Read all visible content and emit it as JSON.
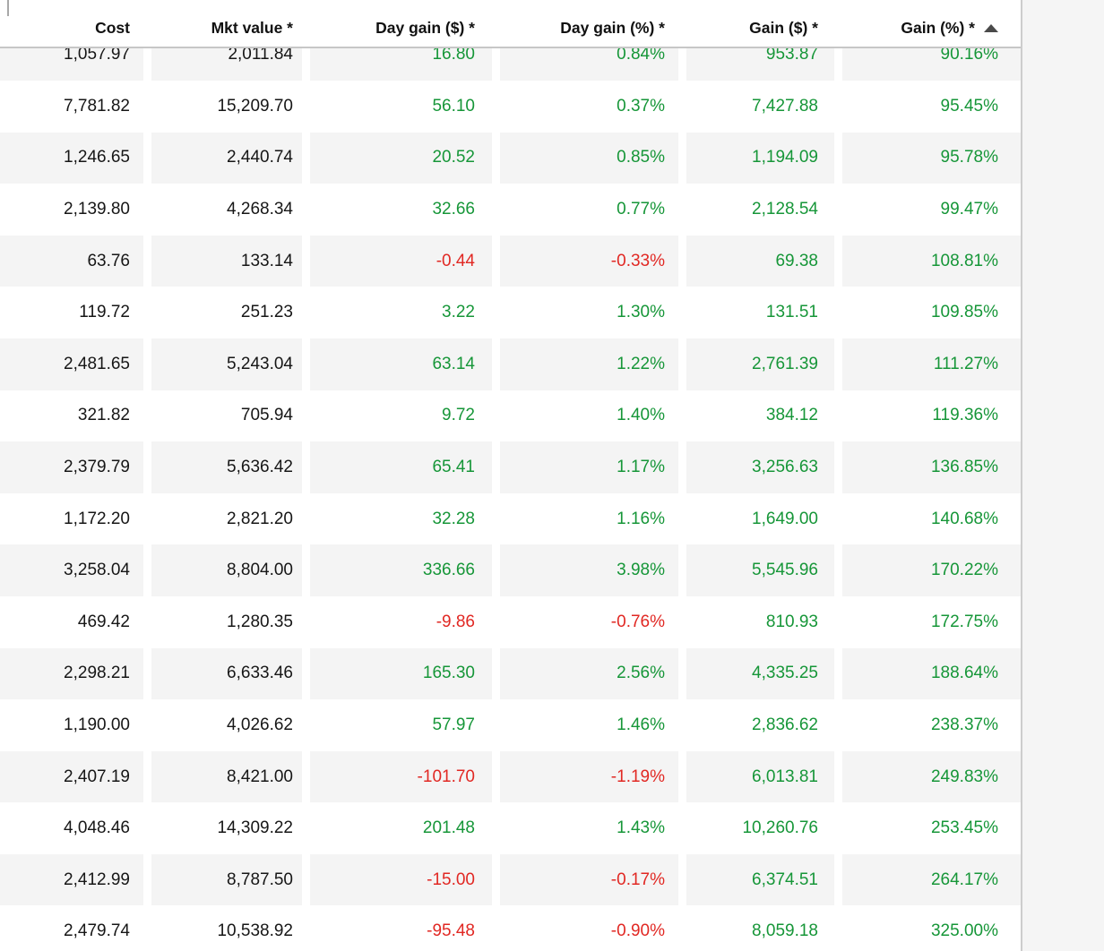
{
  "colors": {
    "positive": "#169638",
    "negative": "#e12823",
    "stripe": "#f4f4f4",
    "header_border": "#c7c7c7"
  },
  "table": {
    "columns": [
      {
        "label": "Cost",
        "key": "cost",
        "colorized": false
      },
      {
        "label": "Mkt value *",
        "key": "mkt_value",
        "colorized": false
      },
      {
        "label": "Day gain ($) *",
        "key": "day_gain_usd",
        "colorized": true
      },
      {
        "label": "Day gain (%) *",
        "key": "day_gain_pct",
        "colorized": true
      },
      {
        "label": "Gain ($) *",
        "key": "gain_usd",
        "colorized": true
      },
      {
        "label": "Gain (%) *",
        "key": "gain_pct",
        "colorized": true
      }
    ],
    "sort": {
      "sorted_by": "Gain (%) *",
      "direction": "ascending"
    },
    "rows": [
      {
        "cost": "1,057.97",
        "mkt_value": "2,011.84",
        "day_gain_usd": "16.80",
        "day_gain_pct": "0.84%",
        "gain_usd": "953.87",
        "gain_pct": "90.16%"
      },
      {
        "cost": "7,781.82",
        "mkt_value": "15,209.70",
        "day_gain_usd": "56.10",
        "day_gain_pct": "0.37%",
        "gain_usd": "7,427.88",
        "gain_pct": "95.45%"
      },
      {
        "cost": "1,246.65",
        "mkt_value": "2,440.74",
        "day_gain_usd": "20.52",
        "day_gain_pct": "0.85%",
        "gain_usd": "1,194.09",
        "gain_pct": "95.78%"
      },
      {
        "cost": "2,139.80",
        "mkt_value": "4,268.34",
        "day_gain_usd": "32.66",
        "day_gain_pct": "0.77%",
        "gain_usd": "2,128.54",
        "gain_pct": "99.47%"
      },
      {
        "cost": "63.76",
        "mkt_value": "133.14",
        "day_gain_usd": "-0.44",
        "day_gain_pct": "-0.33%",
        "gain_usd": "69.38",
        "gain_pct": "108.81%"
      },
      {
        "cost": "119.72",
        "mkt_value": "251.23",
        "day_gain_usd": "3.22",
        "day_gain_pct": "1.30%",
        "gain_usd": "131.51",
        "gain_pct": "109.85%"
      },
      {
        "cost": "2,481.65",
        "mkt_value": "5,243.04",
        "day_gain_usd": "63.14",
        "day_gain_pct": "1.22%",
        "gain_usd": "2,761.39",
        "gain_pct": "111.27%"
      },
      {
        "cost": "321.82",
        "mkt_value": "705.94",
        "day_gain_usd": "9.72",
        "day_gain_pct": "1.40%",
        "gain_usd": "384.12",
        "gain_pct": "119.36%"
      },
      {
        "cost": "2,379.79",
        "mkt_value": "5,636.42",
        "day_gain_usd": "65.41",
        "day_gain_pct": "1.17%",
        "gain_usd": "3,256.63",
        "gain_pct": "136.85%"
      },
      {
        "cost": "1,172.20",
        "mkt_value": "2,821.20",
        "day_gain_usd": "32.28",
        "day_gain_pct": "1.16%",
        "gain_usd": "1,649.00",
        "gain_pct": "140.68%"
      },
      {
        "cost": "3,258.04",
        "mkt_value": "8,804.00",
        "day_gain_usd": "336.66",
        "day_gain_pct": "3.98%",
        "gain_usd": "5,545.96",
        "gain_pct": "170.22%"
      },
      {
        "cost": "469.42",
        "mkt_value": "1,280.35",
        "day_gain_usd": "-9.86",
        "day_gain_pct": "-0.76%",
        "gain_usd": "810.93",
        "gain_pct": "172.75%"
      },
      {
        "cost": "2,298.21",
        "mkt_value": "6,633.46",
        "day_gain_usd": "165.30",
        "day_gain_pct": "2.56%",
        "gain_usd": "4,335.25",
        "gain_pct": "188.64%"
      },
      {
        "cost": "1,190.00",
        "mkt_value": "4,026.62",
        "day_gain_usd": "57.97",
        "day_gain_pct": "1.46%",
        "gain_usd": "2,836.62",
        "gain_pct": "238.37%"
      },
      {
        "cost": "2,407.19",
        "mkt_value": "8,421.00",
        "day_gain_usd": "-101.70",
        "day_gain_pct": "-1.19%",
        "gain_usd": "6,013.81",
        "gain_pct": "249.83%"
      },
      {
        "cost": "4,048.46",
        "mkt_value": "14,309.22",
        "day_gain_usd": "201.48",
        "day_gain_pct": "1.43%",
        "gain_usd": "10,260.76",
        "gain_pct": "253.45%"
      },
      {
        "cost": "2,412.99",
        "mkt_value": "8,787.50",
        "day_gain_usd": "-15.00",
        "day_gain_pct": "-0.17%",
        "gain_usd": "6,374.51",
        "gain_pct": "264.17%"
      },
      {
        "cost": "2,479.74",
        "mkt_value": "10,538.92",
        "day_gain_usd": "-95.48",
        "day_gain_pct": "-0.90%",
        "gain_usd": "8,059.18",
        "gain_pct": "325.00%"
      }
    ]
  }
}
